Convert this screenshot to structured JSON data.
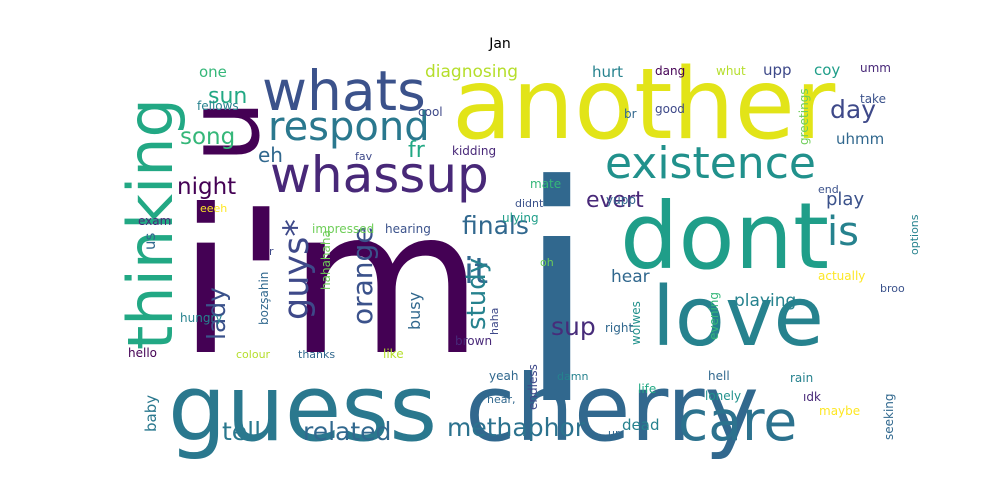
{
  "title": "Jan",
  "colors": [
    "#440154",
    "#482878",
    "#3e4989",
    "#31688e",
    "#26828e",
    "#1f9e89",
    "#35b779",
    "#6ece58",
    "#b5de2b",
    "#fde725"
  ],
  "words": [
    {
      "text": "i'm",
      "color": "#440154"
    },
    {
      "text": "i",
      "color": "#31688e"
    },
    {
      "text": "another",
      "color": "#e2e418"
    },
    {
      "text": "dont",
      "color": "#1f9e89"
    },
    {
      "text": "love",
      "color": "#26828e"
    },
    {
      "text": "cherry",
      "color": "#31688e"
    },
    {
      "text": "guess",
      "color": "#2a788e"
    },
    {
      "text": "care",
      "color": "#2c728e"
    },
    {
      "text": "u",
      "color": "#440154"
    },
    {
      "text": "whats",
      "color": "#3b528b"
    },
    {
      "text": "whassup",
      "color": "#482878"
    },
    {
      "text": "thinking",
      "color": "#22a884"
    },
    {
      "text": "existence",
      "color": "#21918c"
    },
    {
      "text": "respond",
      "color": "#2a788e"
    },
    {
      "text": "guys*",
      "color": "#3e4989"
    },
    {
      "text": "is",
      "color": "#26828e"
    },
    {
      "text": "it",
      "color": "#31688e"
    },
    {
      "text": "orange",
      "color": "#3b528b"
    },
    {
      "text": "night",
      "color": "#440154"
    },
    {
      "text": "song",
      "color": "#35b779"
    },
    {
      "text": "sun",
      "color": "#22a884"
    },
    {
      "text": "eh",
      "color": "#31688e"
    },
    {
      "text": "fr",
      "color": "#22a884"
    },
    {
      "text": "finals",
      "color": "#31688e"
    },
    {
      "text": "study",
      "color": "#26828e"
    },
    {
      "text": "evert",
      "color": "#482878"
    },
    {
      "text": "day",
      "color": "#3e4989"
    },
    {
      "text": "tell",
      "color": "#2a788e"
    },
    {
      "text": "related",
      "color": "#31688e"
    },
    {
      "text": "methaphor",
      "color": "#2c728e"
    },
    {
      "text": "lady",
      "color": "#3b528b"
    },
    {
      "text": "sup",
      "color": "#472c7a"
    },
    {
      "text": "busy",
      "color": "#31688e"
    },
    {
      "text": "play",
      "color": "#3b528b"
    },
    {
      "text": "playing",
      "color": "#26828e"
    },
    {
      "text": "hear",
      "color": "#31688e"
    },
    {
      "text": "diagnosing",
      "color": "#b5de2b"
    },
    {
      "text": "one",
      "color": "#35b779"
    },
    {
      "text": "hurt",
      "color": "#26828e"
    },
    {
      "text": "upp",
      "color": "#3e4989"
    },
    {
      "text": "coy",
      "color": "#1f9e89"
    },
    {
      "text": "uhmm",
      "color": "#31688e"
    },
    {
      "text": "dead",
      "color": "#26828e"
    },
    {
      "text": "us",
      "color": "#31688e"
    },
    {
      "text": "baby",
      "color": "#2a788e"
    },
    {
      "text": "dang",
      "color": "#440154"
    },
    {
      "text": "whut",
      "color": "#b5de2b"
    },
    {
      "text": "umm",
      "color": "#482878"
    },
    {
      "text": "cool",
      "color": "#3e4989"
    },
    {
      "text": "fellows",
      "color": "#26828e"
    },
    {
      "text": "br",
      "color": "#31688e"
    },
    {
      "text": "good",
      "color": "#3e4989"
    },
    {
      "text": "greetings",
      "color": "#6ece58"
    },
    {
      "text": "take",
      "color": "#3b528b"
    },
    {
      "text": "fav",
      "color": "#3e4989"
    },
    {
      "text": "kidding",
      "color": "#482878"
    },
    {
      "text": "end",
      "color": "#3b528b"
    },
    {
      "text": "mate",
      "color": "#35b779"
    },
    {
      "text": "didnt",
      "color": "#3b528b"
    },
    {
      "text": "yupp",
      "color": "#31688e"
    },
    {
      "text": "exam",
      "color": "#482878"
    },
    {
      "text": "eeeh",
      "color": "#fde725"
    },
    {
      "text": "impressed",
      "color": "#6ece58"
    },
    {
      "text": "hearing",
      "color": "#3b528b"
    },
    {
      "text": "options",
      "color": "#26828e"
    },
    {
      "text": "ulying",
      "color": "#1f9e89"
    },
    {
      "text": "oh",
      "color": "#6ece58"
    },
    {
      "text": "r",
      "color": "#3e4989"
    },
    {
      "text": "hahahaha",
      "color": "#6ece58"
    },
    {
      "text": "bozşahin",
      "color": "#31688e"
    },
    {
      "text": "haha",
      "color": "#3e4989"
    },
    {
      "text": "hungry",
      "color": "#26828e"
    },
    {
      "text": "broo",
      "color": "#3b528b"
    },
    {
      "text": "actually",
      "color": "#fde725"
    },
    {
      "text": "evening",
      "color": "#35b779"
    },
    {
      "text": "wolwes",
      "color": "#21918c"
    },
    {
      "text": "right",
      "color": "#31688e"
    },
    {
      "text": "brown",
      "color": "#482878"
    },
    {
      "text": "hello",
      "color": "#440154"
    },
    {
      "text": "colour",
      "color": "#b5de2b"
    },
    {
      "text": "thanks",
      "color": "#31688e"
    },
    {
      "text": "like",
      "color": "#b5de2b"
    },
    {
      "text": "yeah",
      "color": "#31688e"
    },
    {
      "text": "endless",
      "color": "#3e4989"
    },
    {
      "text": "hear,",
      "color": "#31688e"
    },
    {
      "text": "damn",
      "color": "#26828e"
    },
    {
      "text": "life",
      "color": "#22a884"
    },
    {
      "text": "hell",
      "color": "#31688e"
    },
    {
      "text": "rain",
      "color": "#26828e"
    },
    {
      "text": "lonely",
      "color": "#21918c"
    },
    {
      "text": "ıdk",
      "color": "#482878"
    },
    {
      "text": "maybe",
      "color": "#fde725"
    },
    {
      "text": "seeking",
      "color": "#31688e"
    },
    {
      "text": "ur",
      "color": "#31688e"
    }
  ]
}
